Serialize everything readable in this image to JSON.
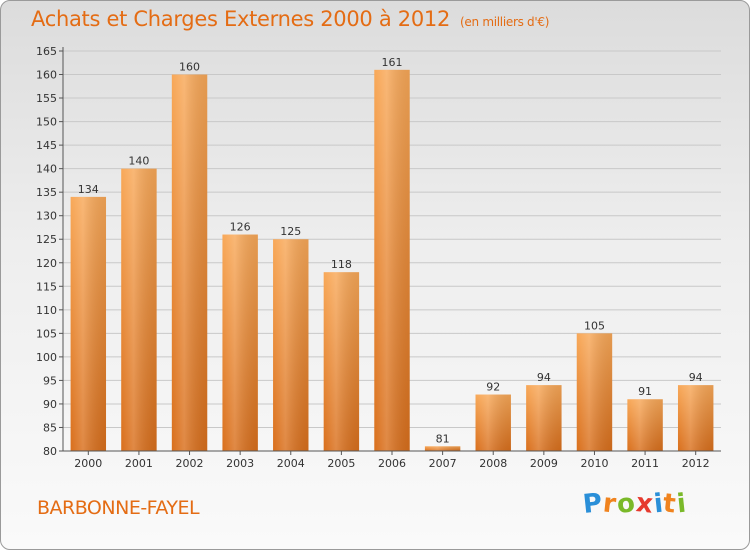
{
  "header": {
    "title": "Achats et Charges Externes 2000 à 2012",
    "subtitle": "(en milliers d'€)"
  },
  "footer": {
    "place": "BARBONNE-FAYEL",
    "logo_letters": [
      "P",
      "r",
      "o",
      "x",
      "i",
      "t",
      "i"
    ],
    "logo_colors": [
      "#2a8fd8",
      "#f0831e",
      "#7ab929",
      "#e63a2e",
      "#2a8fd8",
      "#f0831e",
      "#7ab929"
    ]
  },
  "colors": {
    "bar_light": "#f8a858",
    "bar_dark": "#d96f1c",
    "axis": "#555555",
    "grid": "#c8c8c8"
  },
  "chart_data": {
    "type": "bar",
    "categories": [
      "2000",
      "2001",
      "2002",
      "2003",
      "2004",
      "2005",
      "2006",
      "2007",
      "2008",
      "2009",
      "2010",
      "2011",
      "2012"
    ],
    "values": [
      134,
      140,
      160,
      126,
      125,
      118,
      161,
      81,
      92,
      94,
      105,
      91,
      94
    ],
    "ylim": [
      80,
      165
    ],
    "yticks": [
      80,
      85,
      90,
      95,
      100,
      105,
      110,
      115,
      120,
      125,
      130,
      135,
      140,
      145,
      150,
      155,
      160,
      165
    ],
    "grid": true
  }
}
